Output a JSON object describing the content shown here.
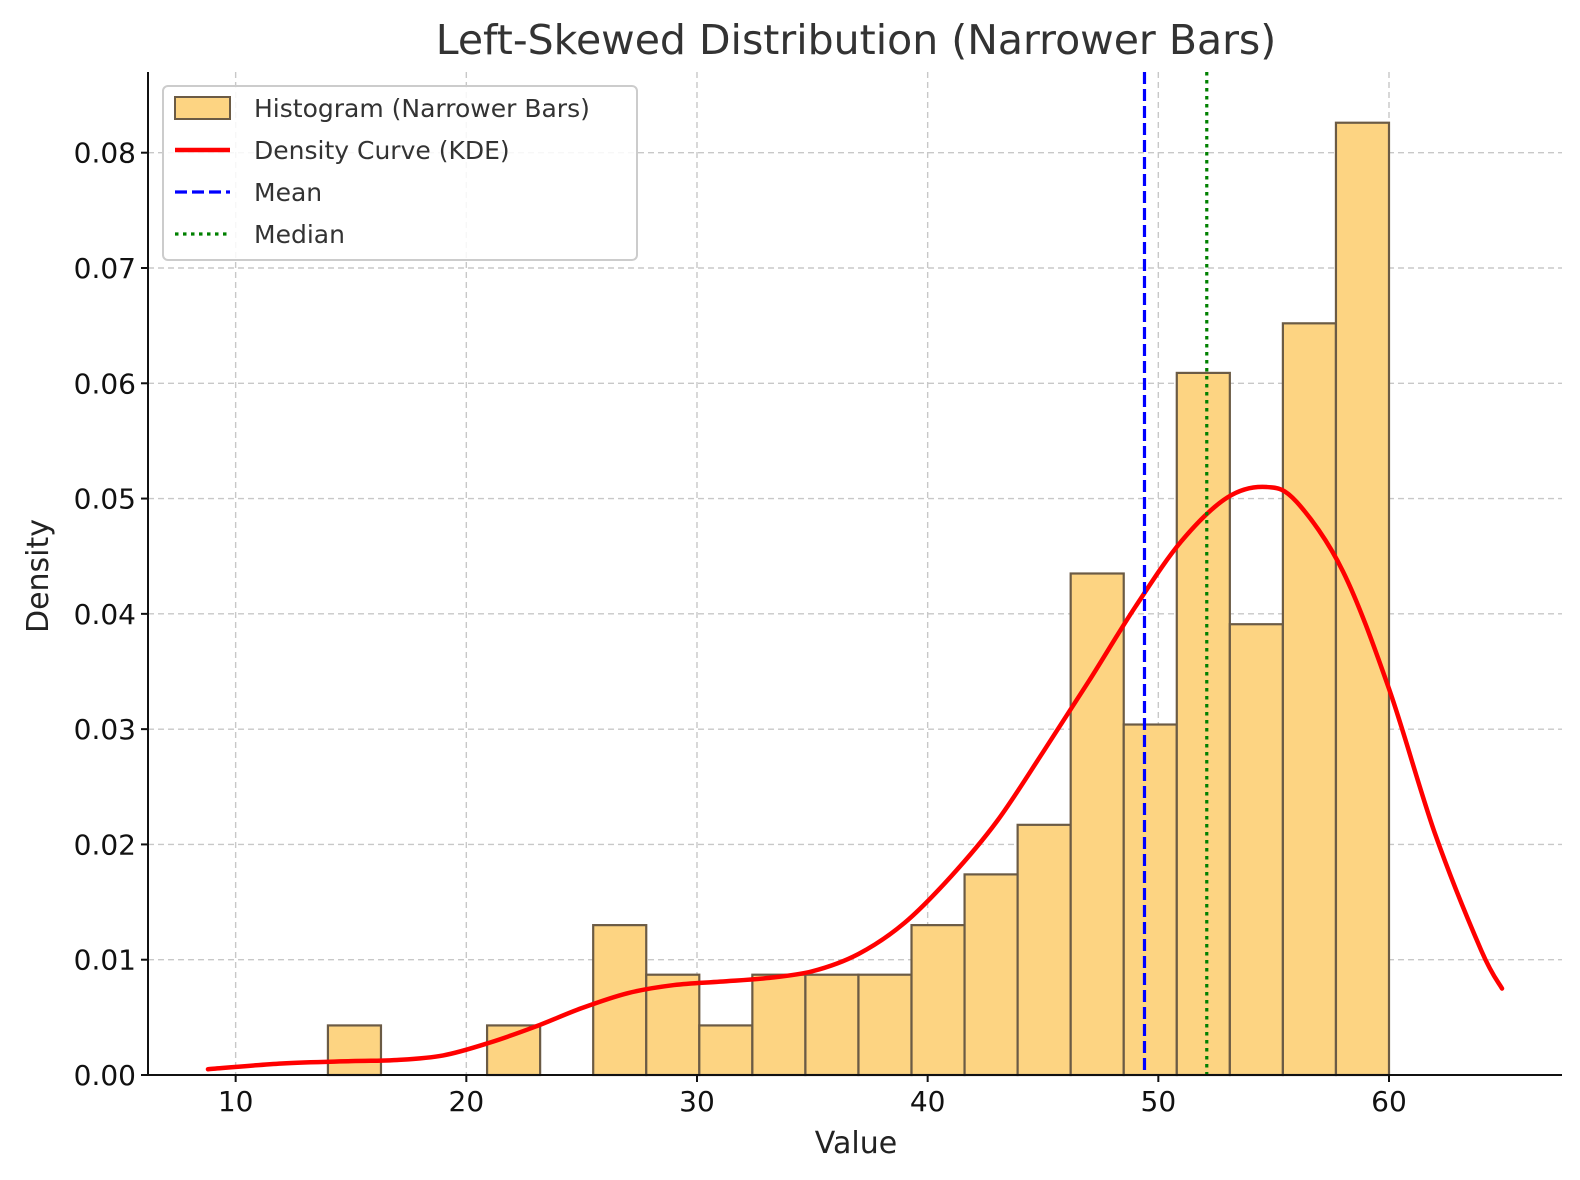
{
  "chart_data": {
    "type": "bar",
    "title": "Left-Skewed Distribution (Narrower Bars)",
    "xlabel": "Value",
    "ylabel": "Density",
    "xlim": [
      6.2,
      67.5
    ],
    "ylim": [
      0.0,
      0.087
    ],
    "x_ticks": [
      10,
      20,
      30,
      40,
      50,
      60
    ],
    "y_ticks": [
      0.0,
      0.01,
      0.02,
      0.03,
      0.04,
      0.05,
      0.06,
      0.07,
      0.08
    ],
    "x_tick_labels": [
      "10",
      "20",
      "30",
      "40",
      "50",
      "60"
    ],
    "y_tick_labels": [
      "0.00",
      "0.01",
      "0.02",
      "0.03",
      "0.04",
      "0.05",
      "0.06",
      "0.07",
      "0.08"
    ],
    "grid": true,
    "legend_position": "upper-left",
    "histogram": {
      "name": "Histogram (Narrower Bars)",
      "color": "#fdd482",
      "edge_color": "#6b5b45",
      "bin_edges": [
        11.7,
        14.0,
        16.3,
        18.6,
        20.9,
        23.2,
        25.5,
        27.8,
        30.1,
        32.4,
        34.7,
        37.0,
        39.3,
        41.6,
        43.9,
        46.2,
        48.5,
        50.8,
        53.1,
        55.4,
        57.7,
        60.0
      ],
      "values": [
        0.0,
        0.0043,
        0.0,
        0.0,
        0.0043,
        0.0,
        0.013,
        0.0087,
        0.0043,
        0.0087,
        0.0087,
        0.0087,
        0.013,
        0.0174,
        0.0217,
        0.0435,
        0.0304,
        0.0609,
        0.0391,
        0.0652,
        0.0826
      ]
    },
    "kde": {
      "name": "Density Curve (KDE)",
      "color": "#ff0000",
      "x": [
        8.8,
        12,
        15,
        17,
        19,
        21,
        23,
        25,
        27,
        29,
        31,
        33,
        35,
        37,
        39,
        41,
        43,
        45,
        47,
        49,
        51,
        53,
        54.7,
        56,
        58,
        60,
        62,
        64,
        64.9
      ],
      "y": [
        0.0005,
        0.001,
        0.0012,
        0.0013,
        0.0017,
        0.0028,
        0.0042,
        0.0058,
        0.0071,
        0.0078,
        0.0081,
        0.0084,
        0.009,
        0.0105,
        0.0132,
        0.0172,
        0.022,
        0.028,
        0.0342,
        0.0406,
        0.0463,
        0.0501,
        0.051,
        0.0497,
        0.0437,
        0.0335,
        0.0209,
        0.0108,
        0.0075
      ]
    },
    "mean": {
      "name": "Mean",
      "value": 49.4,
      "color": "#0000ff",
      "style": "dashed"
    },
    "median": {
      "name": "Median",
      "value": 52.1,
      "color": "#008000",
      "style": "dotted"
    }
  }
}
